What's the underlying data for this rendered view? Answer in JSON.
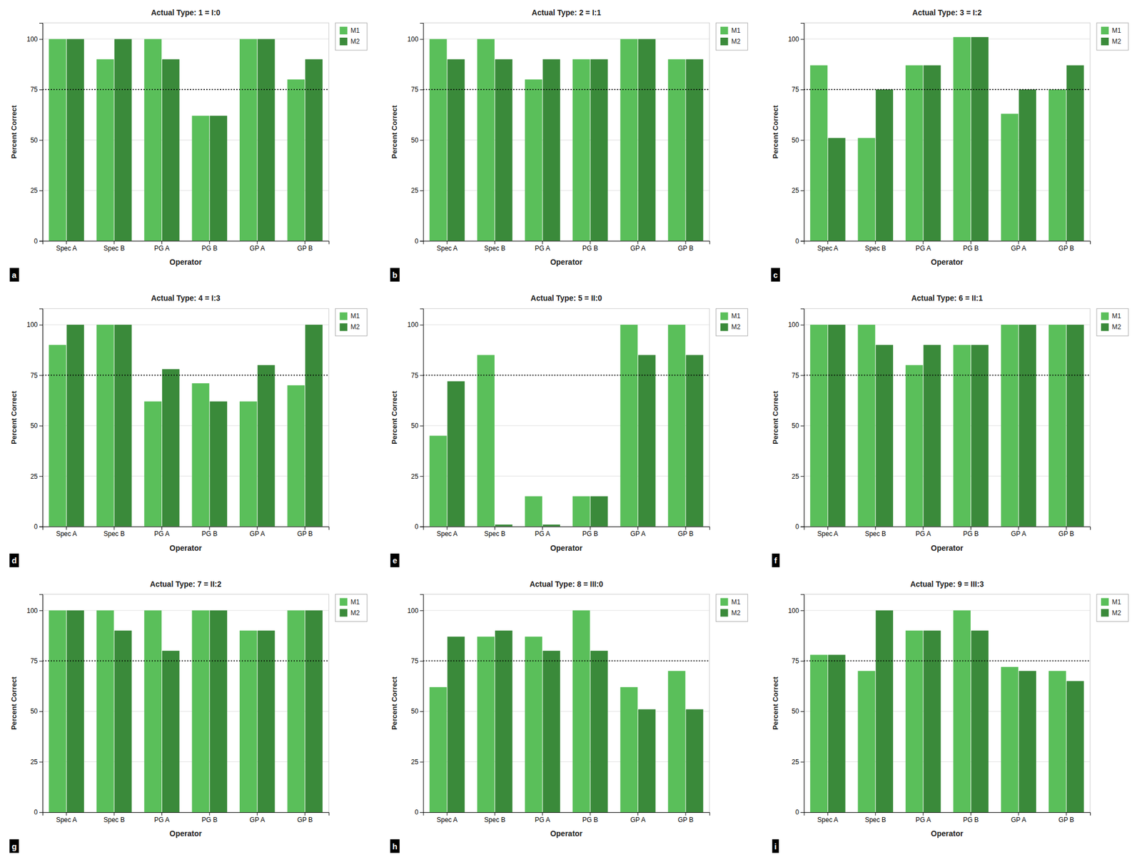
{
  "chart_data": [
    {
      "type": "bar",
      "title": "Actual Type: 1 = I:0",
      "panel_label": "a",
      "xlabel": "Operator",
      "ylabel": "Percent Correct",
      "categories": [
        "Spec A",
        "Spec B",
        "PG A",
        "PG B",
        "GP A",
        "GP B"
      ],
      "series": [
        {
          "name": "M1",
          "color": "#5abf5a",
          "values": [
            100,
            90,
            100,
            62,
            100,
            80
          ]
        },
        {
          "name": "M2",
          "color": "#3a8a3a",
          "values": [
            100,
            100,
            90,
            62,
            100,
            90
          ]
        }
      ],
      "reference_line": 75,
      "ylim": [
        0,
        108
      ],
      "yticks": [
        0,
        25,
        50,
        75,
        100
      ],
      "grid": true,
      "legend": "upper right"
    },
    {
      "type": "bar",
      "title": "Actual Type: 2 = I:1",
      "panel_label": "b",
      "xlabel": "Operator",
      "ylabel": "Percent Correct",
      "categories": [
        "Spec A",
        "Spec B",
        "PG A",
        "PG B",
        "GP A",
        "GP B"
      ],
      "series": [
        {
          "name": "M1",
          "color": "#5abf5a",
          "values": [
            100,
            100,
            80,
            90,
            100,
            90
          ]
        },
        {
          "name": "M2",
          "color": "#3a8a3a",
          "values": [
            90,
            90,
            90,
            90,
            100,
            90
          ]
        }
      ],
      "reference_line": 75,
      "ylim": [
        0,
        108
      ],
      "yticks": [
        0,
        25,
        50,
        75,
        100
      ],
      "grid": true,
      "legend": "upper right"
    },
    {
      "type": "bar",
      "title": "Actual Type: 3 = I:2",
      "panel_label": "c",
      "xlabel": "Operator",
      "ylabel": "Percent Correct",
      "categories": [
        "Spec A",
        "Spec B",
        "PG A",
        "PG B",
        "GP A",
        "GP B"
      ],
      "series": [
        {
          "name": "M1",
          "color": "#5abf5a",
          "values": [
            87,
            51,
            87,
            101,
            63,
            75
          ]
        },
        {
          "name": "M2",
          "color": "#3a8a3a",
          "values": [
            51,
            75,
            87,
            101,
            75,
            87
          ]
        }
      ],
      "reference_line": 75,
      "ylim": [
        0,
        108
      ],
      "yticks": [
        0,
        25,
        50,
        75,
        100
      ],
      "grid": true,
      "legend": "upper right"
    },
    {
      "type": "bar",
      "title": "Actual Type: 4 = I:3",
      "panel_label": "d",
      "xlabel": "Operator",
      "ylabel": "Percent Correct",
      "categories": [
        "Spec A",
        "Spec B",
        "PG A",
        "PG B",
        "GP A",
        "GP B"
      ],
      "series": [
        {
          "name": "M1",
          "color": "#5abf5a",
          "values": [
            90,
            100,
            62,
            71,
            62,
            70
          ]
        },
        {
          "name": "M2",
          "color": "#3a8a3a",
          "values": [
            100,
            100,
            78,
            62,
            80,
            100
          ]
        }
      ],
      "reference_line": 75,
      "ylim": [
        0,
        108
      ],
      "yticks": [
        0,
        25,
        50,
        75,
        100
      ],
      "grid": true,
      "legend": "upper right"
    },
    {
      "type": "bar",
      "title": "Actual Type: 5 = II:0",
      "panel_label": "e",
      "xlabel": "Operator",
      "ylabel": "Percent Correct",
      "categories": [
        "Spec A",
        "Spec B",
        "PG A",
        "PG B",
        "GP A",
        "GP B"
      ],
      "series": [
        {
          "name": "M1",
          "color": "#5abf5a",
          "values": [
            45,
            85,
            15,
            15,
            100,
            100
          ]
        },
        {
          "name": "M2",
          "color": "#3a8a3a",
          "values": [
            72,
            1,
            1,
            15,
            85,
            85
          ]
        }
      ],
      "reference_line": 75,
      "ylim": [
        0,
        108
      ],
      "yticks": [
        0,
        25,
        50,
        75,
        100
      ],
      "grid": true,
      "legend": "upper right"
    },
    {
      "type": "bar",
      "title": "Actual Type: 6 = II:1",
      "panel_label": "f",
      "xlabel": "Operator",
      "ylabel": "Percent Correct",
      "categories": [
        "Spec A",
        "Spec B",
        "PG A",
        "PG B",
        "GP A",
        "GP B"
      ],
      "series": [
        {
          "name": "M1",
          "color": "#5abf5a",
          "values": [
            100,
            100,
            80,
            90,
            100,
            100
          ]
        },
        {
          "name": "M2",
          "color": "#3a8a3a",
          "values": [
            100,
            90,
            90,
            90,
            100,
            100
          ]
        }
      ],
      "reference_line": 75,
      "ylim": [
        0,
        108
      ],
      "yticks": [
        0,
        25,
        50,
        75,
        100
      ],
      "grid": true,
      "legend": "upper right"
    },
    {
      "type": "bar",
      "title": "Actual Type: 7 = II:2",
      "panel_label": "g",
      "xlabel": "Operator",
      "ylabel": "Percent Correct",
      "categories": [
        "Spec A",
        "Spec B",
        "PG A",
        "PG B",
        "GP A",
        "GP B"
      ],
      "series": [
        {
          "name": "M1",
          "color": "#5abf5a",
          "values": [
            100,
            100,
            100,
            100,
            90,
            100
          ]
        },
        {
          "name": "M2",
          "color": "#3a8a3a",
          "values": [
            100,
            90,
            80,
            100,
            90,
            100
          ]
        }
      ],
      "reference_line": 75,
      "ylim": [
        0,
        108
      ],
      "yticks": [
        0,
        25,
        50,
        75,
        100
      ],
      "grid": true,
      "legend": "upper right"
    },
    {
      "type": "bar",
      "title": "Actual Type: 8 = III:0",
      "panel_label": "h",
      "xlabel": "Operator",
      "ylabel": "Percent Correct",
      "categories": [
        "Spec A",
        "Spec B",
        "PG A",
        "PG B",
        "GP A",
        "GP B"
      ],
      "series": [
        {
          "name": "M1",
          "color": "#5abf5a",
          "values": [
            62,
            87,
            87,
            100,
            62,
            70
          ]
        },
        {
          "name": "M2",
          "color": "#3a8a3a",
          "values": [
            87,
            90,
            80,
            80,
            51,
            51
          ]
        }
      ],
      "reference_line": 75,
      "ylim": [
        0,
        108
      ],
      "yticks": [
        0,
        25,
        50,
        75,
        100
      ],
      "grid": true,
      "legend": "upper right"
    },
    {
      "type": "bar",
      "title": "Actual Type: 9 = III:3",
      "panel_label": "i",
      "xlabel": "Operator",
      "ylabel": "Percent Correct",
      "categories": [
        "Spec A",
        "Spec B",
        "PG A",
        "PG B",
        "GP A",
        "GP B"
      ],
      "series": [
        {
          "name": "M1",
          "color": "#5abf5a",
          "values": [
            78,
            70,
            90,
            100,
            72,
            70
          ]
        },
        {
          "name": "M2",
          "color": "#3a8a3a",
          "values": [
            78,
            100,
            90,
            90,
            70,
            65
          ]
        }
      ],
      "reference_line": 75,
      "ylim": [
        0,
        108
      ],
      "yticks": [
        0,
        25,
        50,
        75,
        100
      ],
      "grid": true,
      "legend": "upper right"
    }
  ]
}
